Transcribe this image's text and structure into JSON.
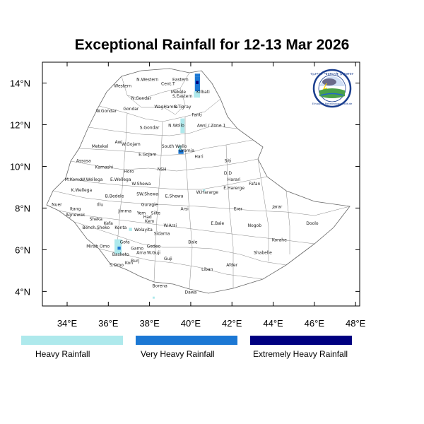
{
  "title": "Exceptional Rainfall for 12-13 Mar 2026",
  "map": {
    "lon_range": [
      32.8,
      48.2
    ],
    "lat_range": [
      3.3,
      15.0
    ],
    "x_ticks": [
      {
        "lon": 34,
        "label": "34°E"
      },
      {
        "lon": 36,
        "label": "36°E"
      },
      {
        "lon": 38,
        "label": "38°E"
      },
      {
        "lon": 40,
        "label": "40°E"
      },
      {
        "lon": 42,
        "label": "42°E"
      },
      {
        "lon": 44,
        "label": "44°E"
      },
      {
        "lon": 46,
        "label": "46°E"
      },
      {
        "lon": 48,
        "label": "48°E"
      }
    ],
    "y_ticks": [
      {
        "lat": 4,
        "label": "4°N"
      },
      {
        "lat": 6,
        "label": "6°N"
      },
      {
        "lat": 8,
        "label": "8°N"
      },
      {
        "lat": 10,
        "label": "10°N"
      },
      {
        "lat": 12,
        "label": "12°N"
      },
      {
        "lat": 14,
        "label": "14°N"
      }
    ],
    "regions": [
      {
        "name": "Western",
        "lon": 36.7,
        "lat": 13.8
      },
      {
        "name": "N.Western",
        "lon": 37.9,
        "lat": 14.1
      },
      {
        "name": "Cent.T",
        "lon": 38.9,
        "lat": 13.9
      },
      {
        "name": "Eastern",
        "lon": 39.5,
        "lat": 14.1
      },
      {
        "name": "Mekele",
        "lon": 39.4,
        "lat": 13.5
      },
      {
        "name": "S.Eastern",
        "lon": 39.6,
        "lat": 13.3
      },
      {
        "name": "Kilbati",
        "lon": 40.6,
        "lat": 13.5
      },
      {
        "name": "N.Gondar",
        "lon": 37.6,
        "lat": 13.2
      },
      {
        "name": "WagHamra",
        "lon": 38.8,
        "lat": 12.8
      },
      {
        "name": "S.Tigray",
        "lon": 39.6,
        "lat": 12.8
      },
      {
        "name": "W.Gondar",
        "lon": 35.9,
        "lat": 12.6
      },
      {
        "name": "Gondar",
        "lon": 37.1,
        "lat": 12.7
      },
      {
        "name": "Fanti",
        "lon": 40.3,
        "lat": 12.4
      },
      {
        "name": "S.Gondar",
        "lon": 38.0,
        "lat": 11.8
      },
      {
        "name": "N.Wollo",
        "lon": 39.3,
        "lat": 11.9
      },
      {
        "name": "Awsi / Zone 1",
        "lon": 41.0,
        "lat": 11.9
      },
      {
        "name": "Metekel",
        "lon": 35.6,
        "lat": 10.9
      },
      {
        "name": "Awi",
        "lon": 36.5,
        "lat": 11.1
      },
      {
        "name": "W.Gojam",
        "lon": 37.1,
        "lat": 11.0
      },
      {
        "name": "E.Gojam",
        "lon": 37.9,
        "lat": 10.5
      },
      {
        "name": "South Wello",
        "lon": 39.2,
        "lat": 10.9
      },
      {
        "name": "Oromia",
        "lon": 39.8,
        "lat": 10.7
      },
      {
        "name": "Hari",
        "lon": 40.4,
        "lat": 10.4
      },
      {
        "name": "Siti",
        "lon": 41.8,
        "lat": 10.2
      },
      {
        "name": "Assosa",
        "lon": 34.8,
        "lat": 10.2
      },
      {
        "name": "Kamashi",
        "lon": 35.8,
        "lat": 9.9
      },
      {
        "name": "Horo",
        "lon": 37.0,
        "lat": 9.7
      },
      {
        "name": "NSH",
        "lon": 38.6,
        "lat": 9.8
      },
      {
        "name": "D.D",
        "lon": 41.8,
        "lat": 9.6
      },
      {
        "name": "Harari",
        "lon": 42.1,
        "lat": 9.3
      },
      {
        "name": "Fafan",
        "lon": 43.1,
        "lat": 9.1
      },
      {
        "name": "M.Komo",
        "lon": 34.3,
        "lat": 9.3
      },
      {
        "name": "W.Wellega",
        "lon": 35.2,
        "lat": 9.3
      },
      {
        "name": "E.Wellega",
        "lon": 36.6,
        "lat": 9.3
      },
      {
        "name": "W.Shewa",
        "lon": 37.6,
        "lat": 9.1
      },
      {
        "name": "K.Wellega",
        "lon": 34.7,
        "lat": 8.8
      },
      {
        "name": "E.Harerge",
        "lon": 42.1,
        "lat": 8.9
      },
      {
        "name": "W.Hararge",
        "lon": 40.8,
        "lat": 8.7
      },
      {
        "name": "B.Bedele",
        "lon": 36.3,
        "lat": 8.5
      },
      {
        "name": "SW.Shewa",
        "lon": 37.9,
        "lat": 8.6
      },
      {
        "name": "E.Shewa",
        "lon": 39.2,
        "lat": 8.5
      },
      {
        "name": "Nuer",
        "lon": 33.5,
        "lat": 8.1
      },
      {
        "name": "Itang",
        "lon": 34.4,
        "lat": 7.9
      },
      {
        "name": "Illu",
        "lon": 35.6,
        "lat": 8.1
      },
      {
        "name": "Guragie",
        "lon": 38.0,
        "lat": 8.1
      },
      {
        "name": "Arsi",
        "lon": 39.7,
        "lat": 7.9
      },
      {
        "name": "Jimma",
        "lon": 36.8,
        "lat": 7.8
      },
      {
        "name": "Erer",
        "lon": 42.3,
        "lat": 7.9
      },
      {
        "name": "Jarar",
        "lon": 44.2,
        "lat": 8.0
      },
      {
        "name": "Agnewak",
        "lon": 34.4,
        "lat": 7.6
      },
      {
        "name": "Yem",
        "lon": 37.6,
        "lat": 7.7
      },
      {
        "name": "Silte",
        "lon": 38.3,
        "lat": 7.7
      },
      {
        "name": "Had",
        "lon": 37.9,
        "lat": 7.5
      },
      {
        "name": "Sheka",
        "lon": 35.4,
        "lat": 7.4
      },
      {
        "name": "Kefa",
        "lon": 36.0,
        "lat": 7.2
      },
      {
        "name": "Kem",
        "lon": 38.0,
        "lat": 7.3
      },
      {
        "name": "W.Arsi",
        "lon": 39.0,
        "lat": 7.1
      },
      {
        "name": "E.Bale",
        "lon": 41.3,
        "lat": 7.2
      },
      {
        "name": "Nogob",
        "lon": 43.1,
        "lat": 7.1
      },
      {
        "name": "Doolo",
        "lon": 45.9,
        "lat": 7.2
      },
      {
        "name": "Bench Sheko",
        "lon": 35.4,
        "lat": 7.0
      },
      {
        "name": "Konta",
        "lon": 36.6,
        "lat": 7.0
      },
      {
        "name": "Wolayita",
        "lon": 37.7,
        "lat": 6.9
      },
      {
        "name": "Sidama",
        "lon": 38.6,
        "lat": 6.7
      },
      {
        "name": "Korahe",
        "lon": 44.3,
        "lat": 6.4
      },
      {
        "name": "Gofa",
        "lon": 36.8,
        "lat": 6.3
      },
      {
        "name": "Mirab Omo",
        "lon": 35.5,
        "lat": 6.1
      },
      {
        "name": "Bale",
        "lon": 40.1,
        "lat": 6.3
      },
      {
        "name": "Gamo",
        "lon": 37.4,
        "lat": 6.0
      },
      {
        "name": "Gedeo",
        "lon": 38.2,
        "lat": 6.1
      },
      {
        "name": "Shabelle",
        "lon": 43.5,
        "lat": 5.8
      },
      {
        "name": "Ama",
        "lon": 37.6,
        "lat": 5.8
      },
      {
        "name": "W.Guji",
        "lon": 38.2,
        "lat": 5.8
      },
      {
        "name": "Basketo",
        "lon": 36.6,
        "lat": 5.7
      },
      {
        "name": "Guji",
        "lon": 38.9,
        "lat": 5.5
      },
      {
        "name": "Burj",
        "lon": 37.3,
        "lat": 5.4
      },
      {
        "name": "Kon",
        "lon": 37.0,
        "lat": 5.3
      },
      {
        "name": "S.Omo",
        "lon": 36.4,
        "lat": 5.2
      },
      {
        "name": "Afder",
        "lon": 42.0,
        "lat": 5.2
      },
      {
        "name": "Liban",
        "lon": 40.8,
        "lat": 5.0
      },
      {
        "name": "Borena",
        "lon": 38.5,
        "lat": 4.2
      },
      {
        "name": "Dawa",
        "lon": 40.0,
        "lat": 3.9
      }
    ],
    "rain_cells": [
      {
        "lon": 40.2,
        "lat": 14.3,
        "lon2": 40.45,
        "lat2": 14.45,
        "category": 1
      },
      {
        "lon": 40.2,
        "lat": 13.6,
        "lon2": 40.45,
        "lat2": 14.3,
        "category": 1
      },
      {
        "lon": 40.25,
        "lat": 13.95,
        "lon2": 40.38,
        "lat2": 14.1,
        "category": 2
      },
      {
        "lon": 40.15,
        "lat": 13.3,
        "lon2": 40.45,
        "lat2": 13.6,
        "category": 0
      },
      {
        "lon": 39.5,
        "lat": 11.6,
        "lon2": 39.7,
        "lat2": 12.3,
        "category": 0
      },
      {
        "lon": 39.4,
        "lat": 10.6,
        "lon2": 39.65,
        "lat2": 10.8,
        "category": 1
      },
      {
        "lon": 39.4,
        "lat": 10.8,
        "lon2": 39.55,
        "lat2": 11.0,
        "category": 0
      },
      {
        "lon": 36.3,
        "lat": 5.8,
        "lon2": 36.65,
        "lat2": 6.5,
        "category": 0
      },
      {
        "lon": 36.45,
        "lat": 6.0,
        "lon2": 36.6,
        "lat2": 6.15,
        "category": 1
      },
      {
        "lon": 37.0,
        "lat": 6.9,
        "lon2": 37.15,
        "lat2": 7.05,
        "category": 0
      },
      {
        "lon": 40.6,
        "lat": 8.8,
        "lon2": 40.7,
        "lat2": 8.9,
        "category": 0
      },
      {
        "lon": 38.15,
        "lat": 3.65,
        "lon2": 38.25,
        "lat2": 3.75,
        "category": 0
      }
    ]
  },
  "legend": [
    {
      "label": "Heavy Rainfall",
      "color": "#aee9ec"
    },
    {
      "label": "Very Heavy Rainfall",
      "color": "#1c78d4"
    },
    {
      "label": "Extremely Heavy Rainfall",
      "color": "#000080"
    }
  ],
  "logo": {
    "top_text": "የኢትዮጵያ ሜቲዎሮሎጂ ኢንስቲትዩት",
    "bottom_text": "Ethiopian Meteorology Institute"
  }
}
